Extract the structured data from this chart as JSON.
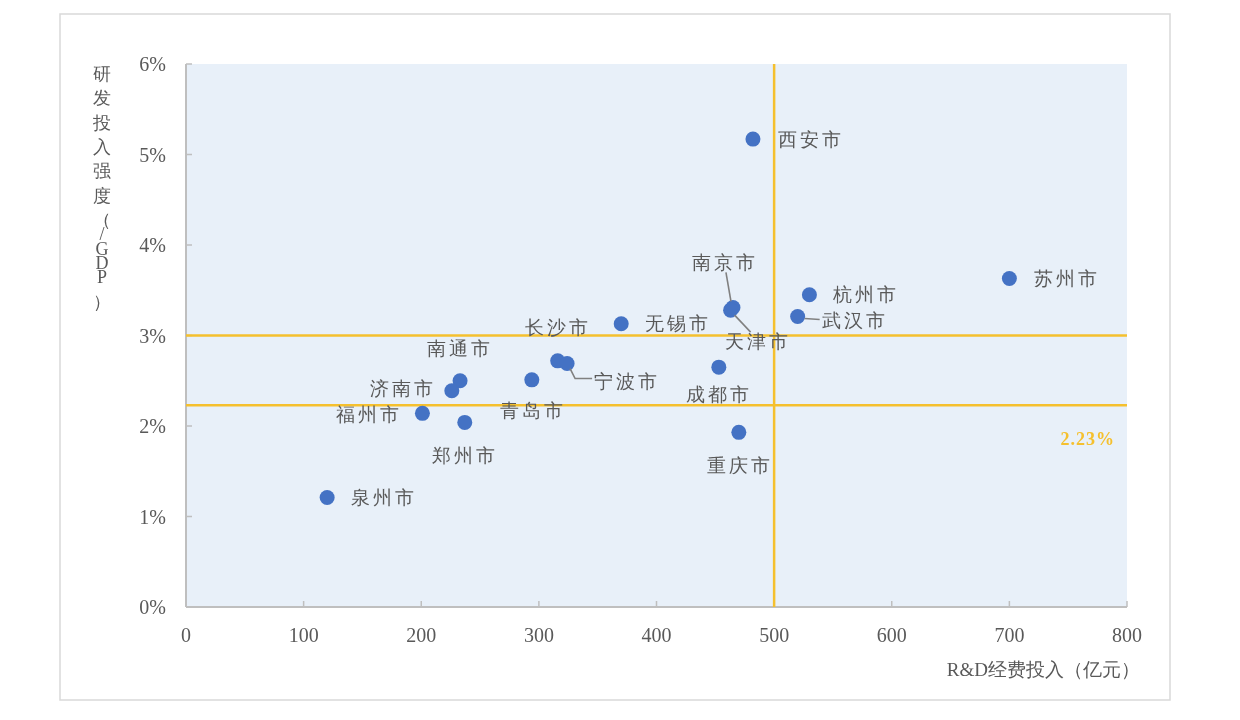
{
  "chart_data": {
    "type": "scatter",
    "xlabel": "R&D经费投入（亿元）",
    "ylabel": "研发投入强度（/GDP）",
    "xlim": [
      0,
      800
    ],
    "xticks": [
      0,
      100,
      200,
      300,
      400,
      500,
      600,
      700,
      800
    ],
    "ylim": [
      0,
      6
    ],
    "yticks": [
      {
        "value": 0,
        "label": "0%"
      },
      {
        "value": 1,
        "label": "1%"
      },
      {
        "value": 2,
        "label": "2%"
      },
      {
        "value": 3,
        "label": "3%"
      },
      {
        "value": 4,
        "label": "4%"
      },
      {
        "value": 5,
        "label": "5%"
      },
      {
        "value": 6,
        "label": "6%"
      }
    ],
    "marker": "circle",
    "series": [
      {
        "name": "西安市",
        "color": "#4472c4",
        "x": [
          482
        ],
        "values": [
          5.17
        ]
      },
      {
        "name": "苏州市",
        "color": "#4472c4",
        "x": [
          700
        ],
        "values": [
          3.63
        ]
      },
      {
        "name": "杭州市",
        "color": "#4472c4",
        "x": [
          530
        ],
        "values": [
          3.45
        ]
      },
      {
        "name": "南京市",
        "color": "#4472c4",
        "x": [
          465
        ],
        "values": [
          3.31
        ]
      },
      {
        "name": "武汉市",
        "color": "#4472c4",
        "x": [
          520
        ],
        "values": [
          3.21
        ]
      },
      {
        "name": "天津市",
        "color": "#4472c4",
        "x": [
          463
        ],
        "values": [
          3.28
        ]
      },
      {
        "name": "无锡市",
        "color": "#4472c4",
        "x": [
          370
        ],
        "values": [
          3.13
        ]
      },
      {
        "name": "长沙市",
        "color": "#4472c4",
        "x": [
          316
        ],
        "values": [
          2.72
        ]
      },
      {
        "name": "宁波市",
        "color": "#4472c4",
        "x": [
          324
        ],
        "values": [
          2.69
        ]
      },
      {
        "name": "成都市",
        "color": "#4472c4",
        "x": [
          453
        ],
        "values": [
          2.65
        ]
      },
      {
        "name": "南通市",
        "color": "#4472c4",
        "x": [
          233
        ],
        "values": [
          2.5
        ]
      },
      {
        "name": "青岛市",
        "color": "#4472c4",
        "x": [
          294
        ],
        "values": [
          2.51
        ]
      },
      {
        "name": "济南市",
        "color": "#4472c4",
        "x": [
          226
        ],
        "values": [
          2.39
        ]
      },
      {
        "name": "福州市",
        "color": "#4472c4",
        "x": [
          201
        ],
        "values": [
          2.14
        ]
      },
      {
        "name": "郑州市",
        "color": "#4472c4",
        "x": [
          237
        ],
        "values": [
          2.04
        ]
      },
      {
        "name": "重庆市",
        "color": "#4472c4",
        "x": [
          470
        ],
        "values": [
          1.93
        ]
      },
      {
        "name": "泉州市",
        "color": "#4472c4",
        "x": [
          120
        ],
        "values": [
          1.21
        ]
      }
    ],
    "ref_lines": [
      {
        "axis": "x",
        "value": 500,
        "color": "#f5c02e"
      },
      {
        "axis": "y",
        "value": 3,
        "color": "#f5c02e"
      },
      {
        "axis": "y",
        "value": 2.23,
        "label": "2.23%",
        "color": "#f5c02e"
      }
    ]
  }
}
